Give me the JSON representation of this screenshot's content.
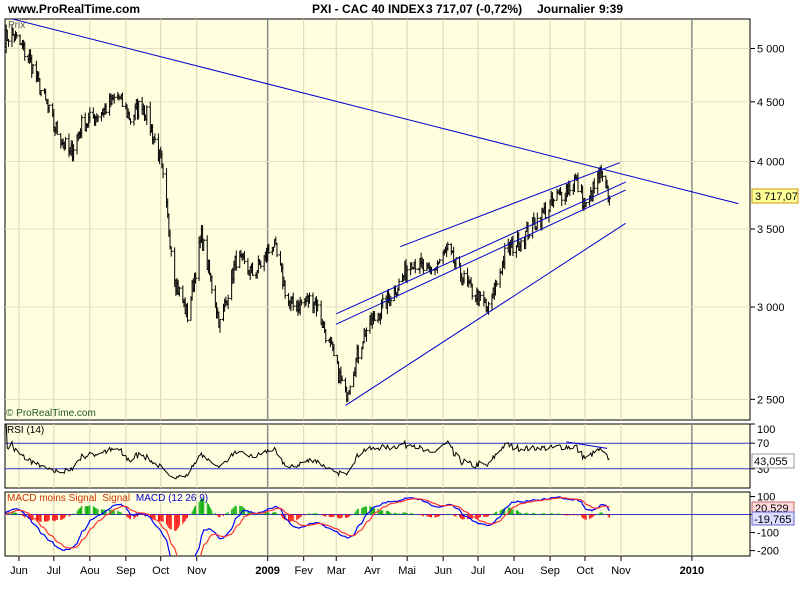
{
  "header": {
    "site": "www.ProRealTime.com",
    "instrument": "PXI - CAC 40 INDEX",
    "last": "3 717,07 (-0,72%)",
    "period": "Journalier",
    "time": "9:39"
  },
  "chart_data": [
    {
      "type": "candlestick",
      "panel": "price",
      "label": "Prix",
      "watermark": "© ProRealTime.com",
      "y_scale": "log",
      "ylim": [
        2400,
        5300
      ],
      "y_ticks": [
        2500,
        3000,
        3500,
        4000,
        4500,
        5000
      ],
      "y_tick_labels": [
        "2 500",
        "3 000",
        "3 500",
        "4 000",
        "4 500",
        "5 000"
      ],
      "last_value": 3717.07,
      "last_value_label": "3 717,07",
      "xlim": [
        "2008-05-20",
        "2010-02-20"
      ],
      "x_ticks": [
        {
          "date": "2008-06-01",
          "label": "Jun"
        },
        {
          "date": "2008-07-01",
          "label": "Jul"
        },
        {
          "date": "2008-08-01",
          "label": "Aou"
        },
        {
          "date": "2008-09-01",
          "label": "Sep"
        },
        {
          "date": "2008-10-01",
          "label": "Oct"
        },
        {
          "date": "2008-11-01",
          "label": "Nov"
        },
        {
          "date": "2009-01-01",
          "label": "2009"
        },
        {
          "date": "2009-02-01",
          "label": "Fev"
        },
        {
          "date": "2009-03-01",
          "label": "Mar"
        },
        {
          "date": "2009-04-01",
          "label": "Avr"
        },
        {
          "date": "2009-05-01",
          "label": "Mai"
        },
        {
          "date": "2009-06-01",
          "label": "Jun"
        },
        {
          "date": "2009-07-01",
          "label": "Jul"
        },
        {
          "date": "2009-08-01",
          "label": "Aou"
        },
        {
          "date": "2009-09-01",
          "label": "Sep"
        },
        {
          "date": "2009-10-01",
          "label": "Oct"
        },
        {
          "date": "2009-11-01",
          "label": "Nov"
        },
        {
          "date": "2010-01-01",
          "label": "2010"
        }
      ],
      "series_anchors": [
        {
          "date": "2008-05-20",
          "close": 5100
        },
        {
          "date": "2008-05-26",
          "close": 5150
        },
        {
          "date": "2008-06-10",
          "close": 4900
        },
        {
          "date": "2008-06-20",
          "close": 4600
        },
        {
          "date": "2008-07-01",
          "close": 4300
        },
        {
          "date": "2008-07-15",
          "close": 4050
        },
        {
          "date": "2008-07-25",
          "close": 4300
        },
        {
          "date": "2008-08-10",
          "close": 4400
        },
        {
          "date": "2008-08-25",
          "close": 4550
        },
        {
          "date": "2008-09-05",
          "close": 4350
        },
        {
          "date": "2008-09-15",
          "close": 4500
        },
        {
          "date": "2008-09-25",
          "close": 4200
        },
        {
          "date": "2008-10-01",
          "close": 4000
        },
        {
          "date": "2008-10-08",
          "close": 3500
        },
        {
          "date": "2008-10-14",
          "close": 3150
        },
        {
          "date": "2008-10-24",
          "close": 2950
        },
        {
          "date": "2008-11-05",
          "close": 3450
        },
        {
          "date": "2008-11-21",
          "close": 2900
        },
        {
          "date": "2008-12-05",
          "close": 3300
        },
        {
          "date": "2008-12-20",
          "close": 3200
        },
        {
          "date": "2009-01-06",
          "close": 3400
        },
        {
          "date": "2009-01-20",
          "close": 3000
        },
        {
          "date": "2009-02-10",
          "close": 3050
        },
        {
          "date": "2009-02-20",
          "close": 2850
        },
        {
          "date": "2009-03-09",
          "close": 2520
        },
        {
          "date": "2009-03-25",
          "close": 2850
        },
        {
          "date": "2009-04-10",
          "close": 3000
        },
        {
          "date": "2009-04-25",
          "close": 3150
        },
        {
          "date": "2009-05-05",
          "close": 3300
        },
        {
          "date": "2009-05-20",
          "close": 3200
        },
        {
          "date": "2009-06-05",
          "close": 3350
        },
        {
          "date": "2009-06-20",
          "close": 3150
        },
        {
          "date": "2009-07-10",
          "close": 2980
        },
        {
          "date": "2009-07-25",
          "close": 3350
        },
        {
          "date": "2009-08-10",
          "close": 3450
        },
        {
          "date": "2009-08-25",
          "close": 3600
        },
        {
          "date": "2009-09-10",
          "close": 3750
        },
        {
          "date": "2009-09-23",
          "close": 3850
        },
        {
          "date": "2009-10-02",
          "close": 3650
        },
        {
          "date": "2009-10-14",
          "close": 3900
        },
        {
          "date": "2009-10-22",
          "close": 3717
        }
      ],
      "trendlines": [
        {
          "name": "long-term-resistance",
          "from": {
            "date": "2008-05-20",
            "value": 5320
          },
          "to": {
            "date": "2010-02-10",
            "value": 3680
          }
        },
        {
          "name": "upper-channel",
          "from": {
            "date": "2009-04-25",
            "value": 3380
          },
          "to": {
            "date": "2009-10-31",
            "value": 3990
          }
        },
        {
          "name": "middle-channel-1",
          "from": {
            "date": "2009-03-01",
            "value": 2960
          },
          "to": {
            "date": "2009-11-05",
            "value": 3840
          }
        },
        {
          "name": "middle-channel-2",
          "from": {
            "date": "2009-03-01",
            "value": 2900
          },
          "to": {
            "date": "2009-11-05",
            "value": 3780
          }
        },
        {
          "name": "lower-support",
          "from": {
            "date": "2009-03-09",
            "value": 2470
          },
          "to": {
            "date": "2009-11-05",
            "value": 3540
          }
        }
      ]
    },
    {
      "type": "line",
      "panel": "rsi",
      "label": "RSI (14)",
      "ylim": [
        0,
        100
      ],
      "y_ticks": [
        30,
        70,
        100
      ],
      "y_tick_labels": [
        "30",
        "70",
        "100"
      ],
      "last_value_label": "43,055"
    },
    {
      "type": "line+bar",
      "panel": "macd",
      "label_parts": [
        "MACD moins Signal",
        "Signal",
        "MACD (12 26 9)"
      ],
      "ylim": [
        -230,
        125
      ],
      "y_ticks": [
        -200,
        -100,
        0,
        100
      ],
      "y_tick_labels": [
        "-200",
        "-100",
        "0",
        "100"
      ],
      "last_signal_label": "20,529",
      "last_macd_label": "-19,765"
    }
  ],
  "colors": {
    "panel_bg": "#ffffe0",
    "price_bar": "#000000",
    "trendline": "#0000cc",
    "level_line": "#3333cc",
    "macd_line": "#0000ff",
    "signal_line": "#ff3333",
    "hist_pos": "#00aa00",
    "hist_neg": "#ff0000"
  }
}
